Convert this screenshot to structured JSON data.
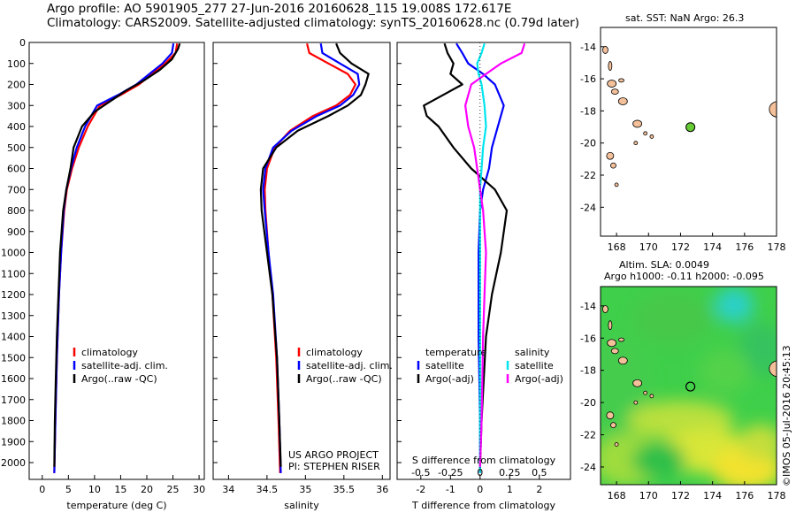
{
  "header": {
    "line1": "Argo profile: AO 5901905_277 27-Jun-2016 20160628_115 19.008S 172.617E",
    "line2": "Climatology: CARS2009. Satellite-adjusted climatology: synTS_20160628.nc (0.79d later)"
  },
  "map_top": {
    "title": "sat. SST: NaN Argo: 26.3"
  },
  "map_bottom": {
    "title1": "Altim. SLA: 0.0049",
    "title2": "Argo h1000: -0.11 h2000: -0.095"
  },
  "credits": {
    "project": "US ARGO PROJECT",
    "pi": "PI: STEPHEN RISER",
    "imos": "©IMOS 05-Jul-2016 20:45:13"
  },
  "colors": {
    "climatology": "#ff0000",
    "satellite": "#0000ff",
    "argo": "#000000",
    "salinity_satellite": "#00e5ee",
    "salinity_argo": "#ff00ff",
    "argo_marker": "#66cc33",
    "land": "#f4c09a"
  },
  "chart_data": [
    {
      "type": "line",
      "panel": "temperature",
      "xlabel": "temperature (deg C)",
      "ylabel": "",
      "xlim": [
        -2.5,
        31
      ],
      "ylim": [
        2080,
        0
      ],
      "xticks": [
        0,
        5,
        10,
        15,
        20,
        25,
        30
      ],
      "yticks": [
        0,
        100,
        200,
        300,
        400,
        500,
        600,
        700,
        800,
        900,
        1000,
        1100,
        1200,
        1300,
        1400,
        1500,
        1600,
        1700,
        1800,
        1900,
        2000
      ],
      "legend": [
        "climatology",
        "satellite-adj. clim.",
        "Argo(..raw -QC)"
      ],
      "series": [
        {
          "name": "climatology",
          "color": "#ff0000",
          "x": [
            25.8,
            25.5,
            23.5,
            21,
            18.5,
            15,
            11,
            8.7,
            7,
            5.7,
            4.7,
            4.2,
            3.6,
            3.2,
            2.8,
            2.5,
            2.3
          ],
          "y": [
            5,
            50,
            100,
            150,
            200,
            250,
            300,
            400,
            500,
            600,
            700,
            800,
            1000,
            1200,
            1500,
            1800,
            2050
          ]
        },
        {
          "name": "satellite-adj. clim.",
          "color": "#0000ff",
          "x": [
            25.1,
            24.8,
            23,
            20.5,
            18,
            14.5,
            10.5,
            8.2,
            6.6,
            5.5,
            4.6,
            4.1,
            3.6,
            3.2,
            2.8,
            2.5,
            2.3
          ],
          "y": [
            5,
            50,
            100,
            150,
            200,
            250,
            300,
            400,
            500,
            600,
            700,
            800,
            1000,
            1200,
            1500,
            1800,
            2050
          ]
        },
        {
          "name": "Argo(..raw -QC)",
          "color": "#000000",
          "x": [
            26.3,
            26,
            24.8,
            22.5,
            19.5,
            16,
            13,
            10,
            7.6,
            6,
            5.4,
            4.6,
            4,
            3.4,
            3.1,
            2.8,
            2.6,
            2.4,
            2.3
          ],
          "y": [
            5,
            30,
            80,
            130,
            180,
            230,
            280,
            330,
            400,
            500,
            600,
            700,
            800,
            1000,
            1200,
            1400,
            1600,
            1800,
            2020
          ]
        }
      ]
    },
    {
      "type": "line",
      "panel": "salinity",
      "xlabel": "salinity",
      "ylabel": "",
      "xlim": [
        33.8,
        36.1
      ],
      "ylim": [
        2080,
        0
      ],
      "xticks": [
        34,
        34.5,
        35,
        35.5,
        36
      ],
      "legend": [
        "climatology",
        "satellite-adj. clim.",
        "Argo(..raw -QC)"
      ],
      "series": [
        {
          "name": "climatology",
          "color": "#ff0000",
          "x": [
            35.02,
            35.05,
            35.3,
            35.55,
            35.65,
            35.58,
            35.4,
            35.1,
            34.8,
            34.6,
            34.5,
            34.47,
            34.48,
            34.52,
            34.57,
            34.62,
            34.65,
            34.67
          ],
          "y": [
            5,
            50,
            100,
            150,
            200,
            250,
            300,
            350,
            420,
            500,
            600,
            700,
            800,
            1000,
            1200,
            1500,
            1800,
            2050
          ]
        },
        {
          "name": "satellite-adj. clim.",
          "color": "#0000ff",
          "x": [
            35.2,
            35.22,
            35.45,
            35.68,
            35.7,
            35.62,
            35.45,
            35.15,
            34.82,
            34.58,
            34.48,
            34.45,
            34.47,
            34.52,
            34.58,
            34.63,
            34.66,
            34.68
          ],
          "y": [
            5,
            50,
            100,
            150,
            200,
            250,
            300,
            350,
            420,
            500,
            600,
            700,
            800,
            1000,
            1200,
            1500,
            1800,
            2050
          ]
        },
        {
          "name": "Argo(..raw -QC)",
          "color": "#000000",
          "x": [
            35.4,
            35.45,
            35.6,
            35.82,
            35.78,
            35.72,
            35.55,
            35.3,
            34.9,
            34.62,
            34.45,
            34.42,
            34.43,
            34.5,
            34.57,
            34.63,
            34.66,
            34.68
          ],
          "y": [
            5,
            50,
            100,
            150,
            200,
            250,
            300,
            350,
            420,
            500,
            600,
            700,
            800,
            1000,
            1200,
            1500,
            1800,
            2020
          ]
        }
      ]
    },
    {
      "type": "line",
      "panel": "difference",
      "xlabel": "T difference from climatology",
      "xlabel2": "S difference from climatology",
      "xlim": [
        -2.8,
        3.05
      ],
      "ylim": [
        2080,
        0
      ],
      "xticks": [
        -2,
        -1,
        0,
        1,
        2
      ],
      "xticks_S": [
        -0.5,
        -0.25,
        0,
        0.25,
        0.5
      ],
      "legend_T_title": "temperature",
      "legend_S_title": "salinity",
      "legend": [
        "satellite",
        "Argo(-adj)",
        "satellite",
        "Argo(-adj)"
      ],
      "series": [
        {
          "name": "T satellite",
          "color": "#0000ff",
          "x": [
            -0.8,
            -0.6,
            -0.4,
            0.1,
            0.5,
            0.8,
            0.6,
            0.4,
            0.3,
            0.1,
            0,
            -0.05,
            -0.05,
            0,
            0
          ],
          "y": [
            5,
            50,
            100,
            150,
            200,
            300,
            400,
            500,
            600,
            700,
            800,
            1000,
            1400,
            1800,
            2050
          ]
        },
        {
          "name": "T Argo(-adj)",
          "color": "#000000",
          "x": [
            -1.2,
            -1.1,
            -0.9,
            -1.0,
            -0.6,
            -1.9,
            -1.8,
            -1.4,
            -0.9,
            -0.3,
            0.5,
            0.9,
            0.7,
            0.4,
            0.2,
            0.05,
            0
          ],
          "y": [
            5,
            50,
            100,
            150,
            200,
            300,
            350,
            400,
            500,
            600,
            700,
            800,
            1000,
            1200,
            1400,
            1800,
            2020
          ]
        },
        {
          "name": "S satellite",
          "color": "#00e5ee",
          "x": [
            0.15,
            0.05,
            -0.1,
            -0.05,
            0.05,
            0.15,
            0.2,
            0.1,
            0.05,
            0,
            0,
            0,
            0
          ],
          "y": [
            5,
            50,
            100,
            150,
            200,
            300,
            400,
            500,
            600,
            700,
            1000,
            1500,
            2050
          ]
        },
        {
          "name": "S Argo(-adj)",
          "color": "#ff00ff",
          "x": [
            1.5,
            1.4,
            0.7,
            0.2,
            -0.3,
            -0.5,
            -0.4,
            -0.2,
            -0.1,
            0,
            0.1,
            0.2,
            0.15,
            0.1,
            0.05,
            0
          ],
          "y": [
            5,
            50,
            100,
            150,
            200,
            300,
            400,
            500,
            600,
            700,
            800,
            1000,
            1200,
            1400,
            1800,
            2020
          ]
        }
      ]
    },
    {
      "type": "map",
      "panel": "sst_map",
      "title": "sat. SST: NaN Argo: 26.3",
      "xlim": [
        167,
        178
      ],
      "ylim": [
        -25.8,
        -12.8
      ],
      "xticks": [
        168,
        170,
        172,
        174,
        176,
        178
      ],
      "yticks": [
        -14,
        -16,
        -18,
        -20,
        -22,
        -24
      ],
      "argo_position": {
        "lon": 172.617,
        "lat": -19.008
      }
    },
    {
      "type": "heatmap",
      "panel": "sla_map",
      "title": "Altim. SLA: 0.0049",
      "xlim": [
        167,
        178
      ],
      "ylim": [
        -25.1,
        -12.8
      ],
      "xticks": [
        168,
        170,
        172,
        174,
        176,
        178
      ],
      "yticks": [
        -14,
        -16,
        -18,
        -20,
        -22,
        -24
      ],
      "argo_position": {
        "lon": 172.617,
        "lat": -19.008
      }
    }
  ]
}
